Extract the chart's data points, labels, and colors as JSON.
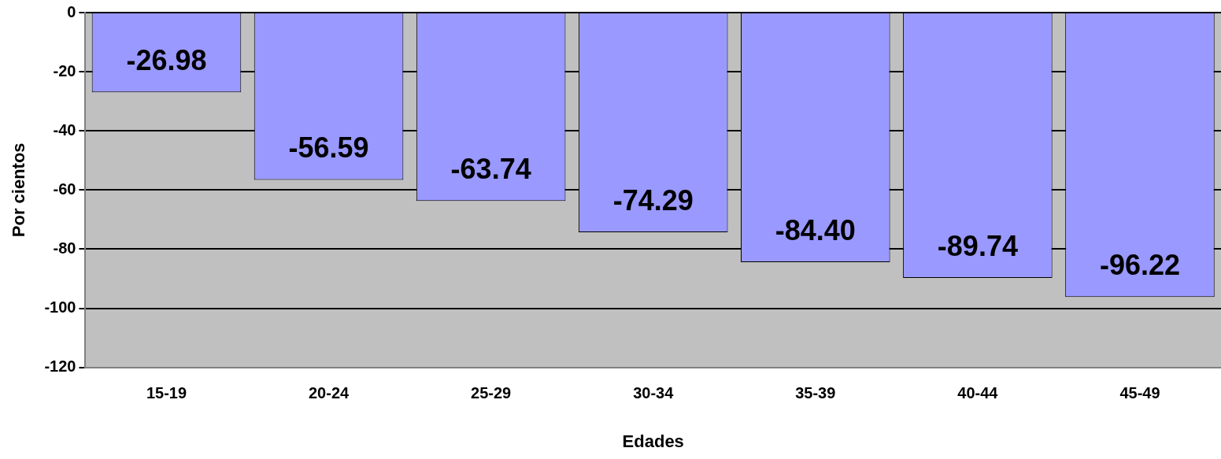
{
  "chart_data": {
    "type": "bar",
    "xlabel": "Edades",
    "ylabel": "Por cientos",
    "categories": [
      "15-19",
      "20-24",
      "25-29",
      "30-34",
      "35-39",
      "40-44",
      "45-49"
    ],
    "values": [
      -26.98,
      -56.59,
      -63.74,
      -74.29,
      -84.4,
      -89.74,
      -96.22
    ],
    "value_labels": [
      "-26.98",
      "-56.59",
      "-63.74",
      "-74.29",
      "-84.40",
      "-89.74",
      "-96.22"
    ],
    "color": "#9999ff",
    "ylim": [
      -120,
      0
    ],
    "yticks": [
      0,
      -20,
      -40,
      -60,
      -80,
      -100,
      -120
    ],
    "grid": "y",
    "legend": false
  }
}
